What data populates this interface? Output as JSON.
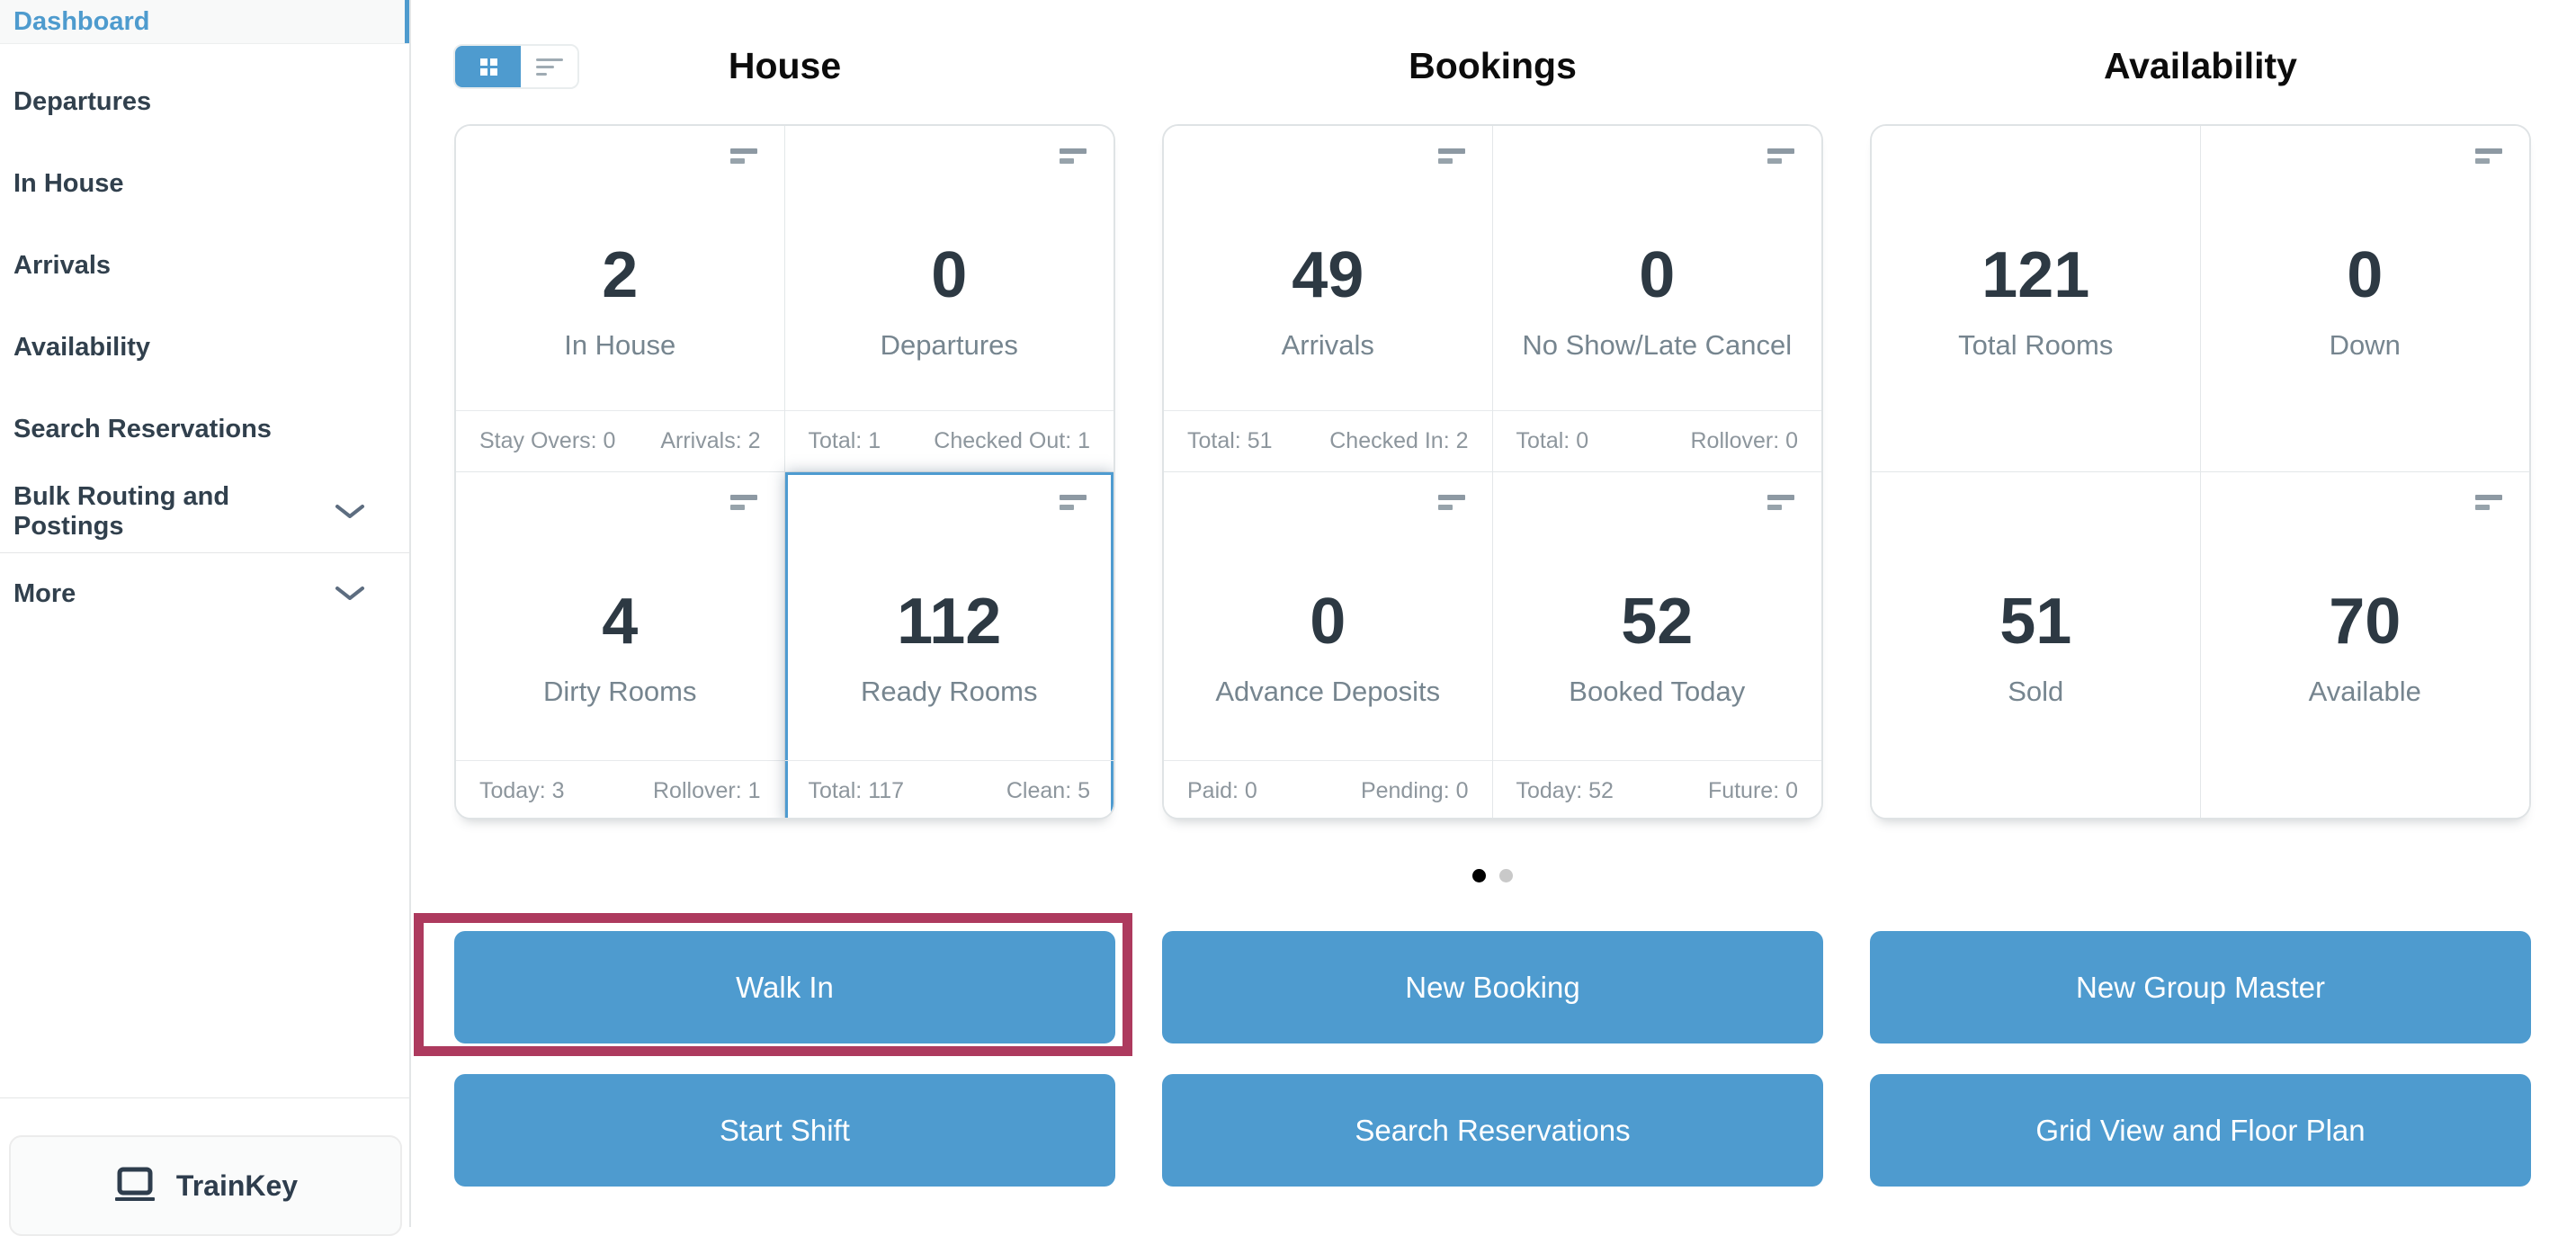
{
  "sidebar": {
    "items": [
      {
        "label": "Dashboard",
        "active": true,
        "expandable": false
      },
      {
        "label": "Departures",
        "active": false,
        "expandable": false
      },
      {
        "label": "In House",
        "active": false,
        "expandable": false
      },
      {
        "label": "Arrivals",
        "active": false,
        "expandable": false
      },
      {
        "label": "Availability",
        "active": false,
        "expandable": false
      },
      {
        "label": "Search Reservations",
        "active": false,
        "expandable": false
      },
      {
        "label": "Bulk Routing and Postings",
        "active": false,
        "expandable": true
      },
      {
        "label": "More",
        "active": false,
        "expandable": true,
        "divider_above": true
      }
    ],
    "footer": {
      "label": "TrainKey",
      "icon": "laptop-icon"
    }
  },
  "toolbar": {
    "view_toggle": [
      {
        "name": "grid-view",
        "icon": "grid-icon",
        "active": true
      },
      {
        "name": "list-view",
        "icon": "list-icon",
        "active": false
      }
    ]
  },
  "sections": [
    {
      "title": "House",
      "cards": [
        {
          "value": "2",
          "label": "In House",
          "menu_icon": true,
          "footer_left": "Stay Overs: 0",
          "footer_right": "Arrivals: 2",
          "highlighted": false
        },
        {
          "value": "0",
          "label": "Departures",
          "menu_icon": true,
          "footer_left": "Total: 1",
          "footer_right": "Checked Out: 1",
          "highlighted": false
        },
        {
          "value": "4",
          "label": "Dirty Rooms",
          "menu_icon": true,
          "footer_left": "Today: 3",
          "footer_right": "Rollover: 1",
          "highlighted": false
        },
        {
          "value": "112",
          "label": "Ready Rooms",
          "menu_icon": true,
          "footer_left": "Total: 117",
          "footer_right": "Clean: 5",
          "highlighted": true
        }
      ]
    },
    {
      "title": "Bookings",
      "cards": [
        {
          "value": "49",
          "label": "Arrivals",
          "menu_icon": true,
          "footer_left": "Total: 51",
          "footer_right": "Checked In: 2",
          "highlighted": false
        },
        {
          "value": "0",
          "label": "No Show/Late Cancel",
          "menu_icon": true,
          "footer_left": "Total: 0",
          "footer_right": "Rollover: 0",
          "highlighted": false
        },
        {
          "value": "0",
          "label": "Advance Deposits",
          "menu_icon": true,
          "footer_left": "Paid: 0",
          "footer_right": "Pending: 0",
          "highlighted": false
        },
        {
          "value": "52",
          "label": "Booked Today",
          "menu_icon": true,
          "footer_left": "Today: 52",
          "footer_right": "Future: 0",
          "highlighted": false
        }
      ]
    },
    {
      "title": "Availability",
      "cards": [
        {
          "value": "121",
          "label": "Total Rooms",
          "menu_icon": false,
          "highlighted": false
        },
        {
          "value": "0",
          "label": "Down",
          "menu_icon": true,
          "highlighted": false
        },
        {
          "value": "51",
          "label": "Sold",
          "menu_icon": false,
          "highlighted": false
        },
        {
          "value": "70",
          "label": "Available",
          "menu_icon": true,
          "highlighted": false
        }
      ]
    }
  ],
  "pagination": {
    "dots": [
      {
        "active": true
      },
      {
        "active": false
      }
    ]
  },
  "actions": {
    "buttons": [
      {
        "label": "Walk In",
        "highlighted": true
      },
      {
        "label": "New Booking",
        "highlighted": false
      },
      {
        "label": "New Group Master",
        "highlighted": false
      },
      {
        "label": "Start Shift",
        "highlighted": false
      },
      {
        "label": "Search Reservations",
        "highlighted": false
      },
      {
        "label": "Grid View and Floor Plan",
        "highlighted": false
      }
    ]
  },
  "colors": {
    "accent_blue": "#4e9bcf",
    "highlight_maroon": "#ad3a5e",
    "tile_highlight_border": "#4e9bd0",
    "active_dot": "#000000",
    "inactive_dot": "#c9c9c9",
    "number_text": "#2d3943",
    "label_text": "#76858f",
    "footer_text": "#8d969d"
  }
}
